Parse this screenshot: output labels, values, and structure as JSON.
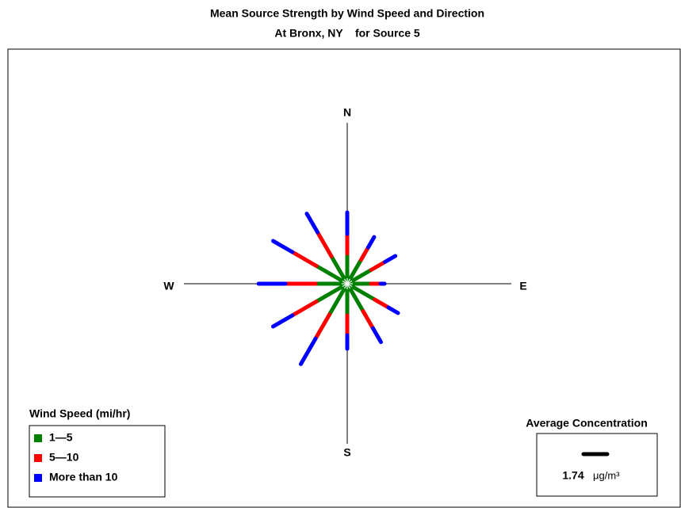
{
  "chart_data": {
    "type": "windrose",
    "title": "Mean Source Strength by Wind Speed and Direction",
    "subtitle": "At Bronx, NY    for Source 5",
    "compass_labels": [
      "N",
      "E",
      "S",
      "W"
    ],
    "x": [
      0,
      30,
      60,
      90,
      120,
      150,
      180,
      210,
      240,
      270,
      300,
      330
    ],
    "legend_title": "Wind Speed (mi/hr)",
    "series": [
      {
        "name": "1—5",
        "color": "#008000",
        "values": [
          2.2,
          2.03,
          2.03,
          1.74,
          2.32,
          2.32,
          2.32,
          2.61,
          2.61,
          2.32,
          2.61,
          2.32
        ]
      },
      {
        "name": "5—10",
        "color": "#ff0000",
        "values": [
          1.45,
          1.04,
          1.16,
          0.7,
          1.16,
          1.45,
          1.45,
          2.03,
          2.03,
          2.2,
          2.03,
          2.03
        ]
      },
      {
        "name": "More than 10",
        "color": "#0000ff",
        "values": [
          1.57,
          0.87,
          0.87,
          0.29,
          0.81,
          1.16,
          0.99,
          2.15,
          1.62,
          1.97,
          1.62,
          1.57
        ]
      }
    ],
    "reference": {
      "title": "Average Concentration",
      "value": 1.74,
      "unit": "μg/m³"
    }
  }
}
